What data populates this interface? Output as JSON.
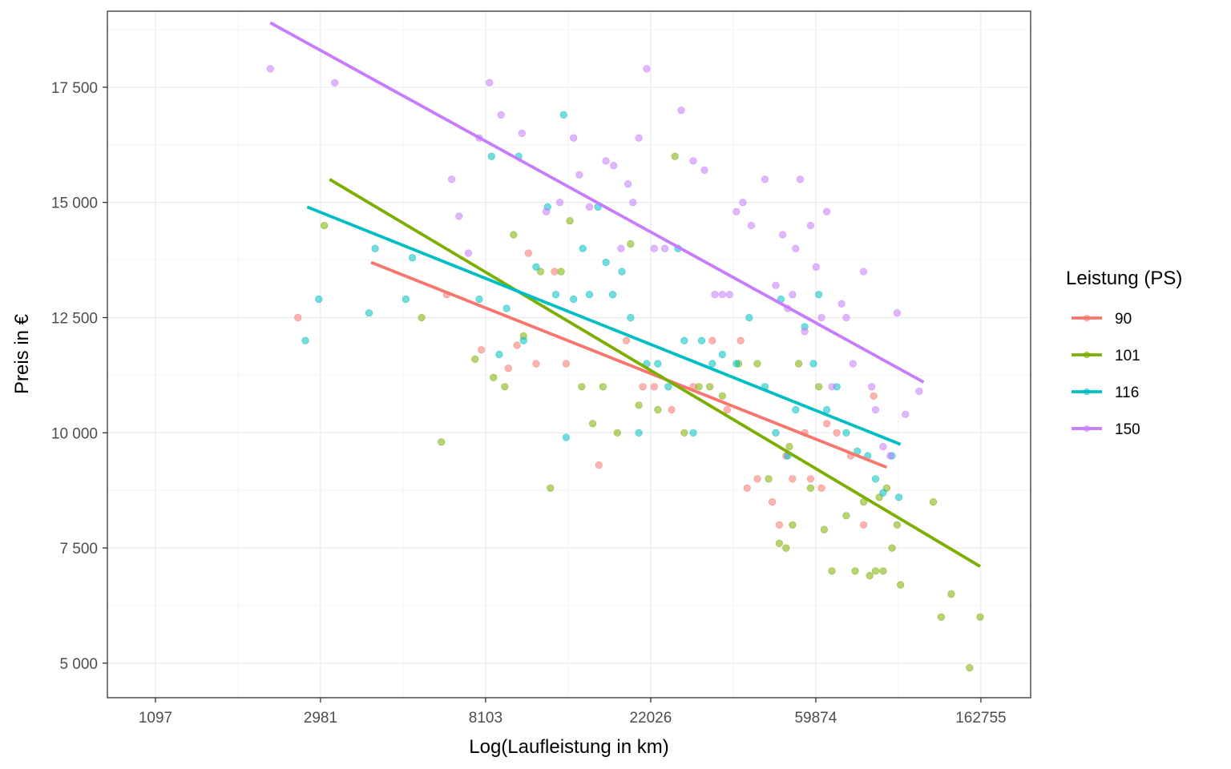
{
  "chart_data": {
    "type": "scatter",
    "title": "",
    "xlabel": "Log(Laufleistung in km)",
    "ylabel": "Preis in €",
    "x_scale": "log",
    "x_ticks": [
      {
        "value": 1097,
        "label": "1097"
      },
      {
        "value": 2981,
        "label": "2981"
      },
      {
        "value": 8103,
        "label": "8103"
      },
      {
        "value": 22026,
        "label": "22026"
      },
      {
        "value": 59874,
        "label": "59874"
      },
      {
        "value": 162755,
        "label": "162755"
      }
    ],
    "y_ticks": [
      {
        "value": 5000,
        "label": "5 000"
      },
      {
        "value": 7500,
        "label": "7 500"
      },
      {
        "value": 10000,
        "label": "10 000"
      },
      {
        "value": 12500,
        "label": "12 500"
      },
      {
        "value": 15000,
        "label": "15 000"
      },
      {
        "value": 17500,
        "label": "17 500"
      }
    ],
    "xlim": [
      820,
      220000
    ],
    "ylim": [
      4250,
      19150
    ],
    "grid": true,
    "legend": {
      "title": "Leistung (PS)",
      "position": "right"
    },
    "series": [
      {
        "name": "90",
        "color": "#F8766D",
        "trend": [
          [
            4050,
            13700
          ],
          [
            92000,
            9250
          ]
        ],
        "points": [
          [
            2600,
            12500
          ],
          [
            6400,
            13000
          ],
          [
            7900,
            11800
          ],
          [
            9300,
            11400
          ],
          [
            9800,
            11900
          ],
          [
            10500,
            13900
          ],
          [
            11000,
            11500
          ],
          [
            12300,
            13500
          ],
          [
            13200,
            11500
          ],
          [
            16100,
            9300
          ],
          [
            19000,
            12000
          ],
          [
            21000,
            11000
          ],
          [
            22500,
            11000
          ],
          [
            25000,
            10500
          ],
          [
            28500,
            11000
          ],
          [
            32000,
            12000
          ],
          [
            35000,
            10500
          ],
          [
            38000,
            12000
          ],
          [
            39500,
            8800
          ],
          [
            42000,
            9000
          ],
          [
            46000,
            8500
          ],
          [
            48000,
            8000
          ],
          [
            50000,
            9500
          ],
          [
            52000,
            9000
          ],
          [
            56000,
            10000
          ],
          [
            58000,
            9000
          ],
          [
            62000,
            8800
          ],
          [
            64000,
            10200
          ],
          [
            68000,
            10000
          ],
          [
            74000,
            9500
          ],
          [
            80000,
            8000
          ],
          [
            85000,
            10800
          ]
        ]
      },
      {
        "name": "101",
        "color": "#7CAE00",
        "trend": [
          [
            3150,
            15500
          ],
          [
            162000,
            7100
          ]
        ],
        "points": [
          [
            3050,
            14500
          ],
          [
            5500,
            12500
          ],
          [
            6200,
            9800
          ],
          [
            7600,
            11600
          ],
          [
            8500,
            11200
          ],
          [
            9100,
            11000
          ],
          [
            9600,
            14300
          ],
          [
            10200,
            12100
          ],
          [
            11300,
            13500
          ],
          [
            12000,
            8800
          ],
          [
            12800,
            13500
          ],
          [
            13500,
            14600
          ],
          [
            14500,
            11000
          ],
          [
            15500,
            10200
          ],
          [
            16500,
            11000
          ],
          [
            18000,
            10000
          ],
          [
            19500,
            14100
          ],
          [
            20500,
            10600
          ],
          [
            23000,
            10500
          ],
          [
            25500,
            16000
          ],
          [
            27000,
            10000
          ],
          [
            29500,
            11000
          ],
          [
            31500,
            11000
          ],
          [
            34000,
            10800
          ],
          [
            37500,
            11500
          ],
          [
            42000,
            11500
          ],
          [
            45000,
            9000
          ],
          [
            48000,
            7600
          ],
          [
            50000,
            7500
          ],
          [
            51000,
            9700
          ],
          [
            52000,
            8000
          ],
          [
            54000,
            11500
          ],
          [
            58000,
            8800
          ],
          [
            61000,
            11000
          ],
          [
            63000,
            7900
          ],
          [
            66000,
            7000
          ],
          [
            72000,
            8200
          ],
          [
            76000,
            7000
          ],
          [
            80000,
            8500
          ],
          [
            83000,
            6900
          ],
          [
            86000,
            7000
          ],
          [
            88000,
            8600
          ],
          [
            90000,
            7000
          ],
          [
            92000,
            8800
          ],
          [
            95000,
            7500
          ],
          [
            98000,
            8000
          ],
          [
            100000,
            6700
          ],
          [
            122000,
            8500
          ],
          [
            128000,
            6000
          ],
          [
            136000,
            6500
          ],
          [
            152000,
            4900
          ],
          [
            162000,
            6000
          ]
        ]
      },
      {
        "name": "116",
        "color": "#00BFC4",
        "trend": [
          [
            2750,
            14900
          ],
          [
            100000,
            9750
          ]
        ],
        "points": [
          [
            2720,
            12000
          ],
          [
            2950,
            12900
          ],
          [
            4000,
            12600
          ],
          [
            4150,
            14000
          ],
          [
            5000,
            12900
          ],
          [
            5200,
            13800
          ],
          [
            7800,
            12900
          ],
          [
            8400,
            16000
          ],
          [
            8800,
            11700
          ],
          [
            9200,
            12700
          ],
          [
            9900,
            16000
          ],
          [
            10200,
            12000
          ],
          [
            11000,
            13600
          ],
          [
            11800,
            14900
          ],
          [
            12400,
            13000
          ],
          [
            13000,
            16900
          ],
          [
            13200,
            9900
          ],
          [
            13800,
            12900
          ],
          [
            14600,
            14000
          ],
          [
            15200,
            13000
          ],
          [
            16000,
            14900
          ],
          [
            16800,
            13700
          ],
          [
            17500,
            13000
          ],
          [
            18500,
            13500
          ],
          [
            19500,
            12500
          ],
          [
            20500,
            10000
          ],
          [
            21500,
            11500
          ],
          [
            23000,
            11500
          ],
          [
            24500,
            11000
          ],
          [
            26000,
            14000
          ],
          [
            27000,
            12000
          ],
          [
            28500,
            10000
          ],
          [
            30000,
            12000
          ],
          [
            32000,
            11500
          ],
          [
            34000,
            11700
          ],
          [
            37000,
            11500
          ],
          [
            40000,
            12500
          ],
          [
            44000,
            11000
          ],
          [
            47000,
            10000
          ],
          [
            48500,
            12900
          ],
          [
            50500,
            9500
          ],
          [
            53000,
            10500
          ],
          [
            56000,
            12300
          ],
          [
            59000,
            11500
          ],
          [
            61000,
            13000
          ],
          [
            64000,
            10500
          ],
          [
            68000,
            11000
          ],
          [
            72000,
            10000
          ],
          [
            77000,
            9600
          ],
          [
            82000,
            9500
          ],
          [
            86000,
            9000
          ],
          [
            90000,
            8700
          ],
          [
            95000,
            9500
          ],
          [
            99000,
            8600
          ]
        ]
      },
      {
        "name": "150",
        "color": "#C77CFF",
        "trend": [
          [
            2200,
            18900
          ],
          [
            115000,
            11100
          ]
        ],
        "points": [
          [
            2200,
            17900
          ],
          [
            3250,
            17600
          ],
          [
            6600,
            15500
          ],
          [
            6900,
            14700
          ],
          [
            7300,
            13900
          ],
          [
            7800,
            16400
          ],
          [
            8300,
            17600
          ],
          [
            8900,
            16900
          ],
          [
            10100,
            16500
          ],
          [
            11700,
            14800
          ],
          [
            12700,
            15000
          ],
          [
            13800,
            16400
          ],
          [
            14300,
            15600
          ],
          [
            15200,
            14900
          ],
          [
            16800,
            15900
          ],
          [
            17600,
            15800
          ],
          [
            18400,
            14000
          ],
          [
            19200,
            15400
          ],
          [
            19800,
            15000
          ],
          [
            20500,
            16400
          ],
          [
            21500,
            17900
          ],
          [
            22500,
            14000
          ],
          [
            24000,
            14000
          ],
          [
            26500,
            17000
          ],
          [
            28500,
            15900
          ],
          [
            30500,
            15700
          ],
          [
            32500,
            13000
          ],
          [
            34000,
            13000
          ],
          [
            35500,
            13000
          ],
          [
            37000,
            14800
          ],
          [
            38500,
            15000
          ],
          [
            40500,
            14500
          ],
          [
            44000,
            15500
          ],
          [
            47000,
            13200
          ],
          [
            49000,
            14300
          ],
          [
            50500,
            12700
          ],
          [
            52000,
            13000
          ],
          [
            53000,
            14000
          ],
          [
            54500,
            15500
          ],
          [
            56000,
            12200
          ],
          [
            58000,
            14500
          ],
          [
            60000,
            13600
          ],
          [
            62000,
            12500
          ],
          [
            64000,
            14800
          ],
          [
            66000,
            11000
          ],
          [
            70000,
            12800
          ],
          [
            72000,
            12500
          ],
          [
            75000,
            11500
          ],
          [
            80000,
            13500
          ],
          [
            84000,
            11000
          ],
          [
            86000,
            10500
          ],
          [
            90000,
            9700
          ],
          [
            94000,
            9500
          ],
          [
            98000,
            12600
          ],
          [
            103000,
            10400
          ],
          [
            112000,
            10900
          ]
        ]
      }
    ]
  }
}
